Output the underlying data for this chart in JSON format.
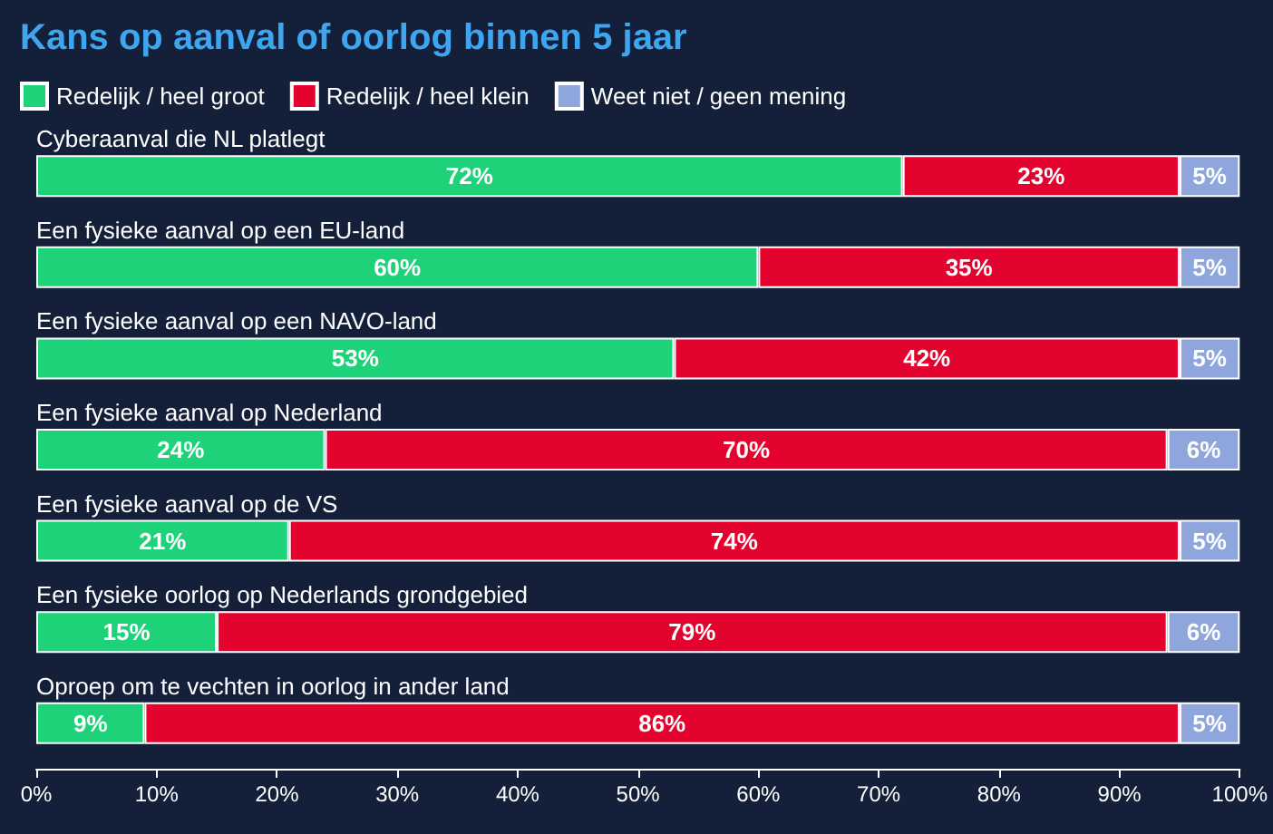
{
  "chart_data": {
    "type": "bar",
    "orientation": "horizontal",
    "stacked": true,
    "title": "Kans op aanval of oorlog binnen 5 jaar",
    "categories": [
      "Cyberaanval die NL platlegt",
      "Een fysieke aanval op een EU-land",
      "Een fysieke aanval op een NAVO-land",
      "Een fysieke aanval op Nederland",
      "Een fysieke aanval op de VS",
      "Een fysieke oorlog op Nederlands grondgebied",
      "Oproep om te vechten in oorlog in ander land"
    ],
    "series": [
      {
        "name": "Redelijk / heel groot",
        "color": "#1ed27a",
        "values": [
          72,
          60,
          53,
          24,
          21,
          15,
          9
        ],
        "value_labels": [
          "72%",
          "60%",
          "53%",
          "24%",
          "21%",
          "15%",
          "9%"
        ]
      },
      {
        "name": "Redelijk / heel klein",
        "color": "#e4032e",
        "values": [
          23,
          35,
          42,
          70,
          74,
          79,
          86
        ],
        "value_labels": [
          "23%",
          "35%",
          "42%",
          "70%",
          "74%",
          "79%",
          "86%"
        ]
      },
      {
        "name": "Weet niet / geen mening",
        "color": "#8ea6dc",
        "values": [
          5,
          5,
          5,
          6,
          5,
          6,
          5
        ],
        "value_labels": [
          "5%",
          "5%",
          "5%",
          "6%",
          "5%",
          "6%",
          "5%"
        ]
      }
    ],
    "xlim": [
      0,
      100
    ],
    "xticks": [
      {
        "value": 0,
        "label": "0%"
      },
      {
        "value": 10,
        "label": "10%"
      },
      {
        "value": 20,
        "label": "20%"
      },
      {
        "value": 30,
        "label": "30%"
      },
      {
        "value": 40,
        "label": "40%"
      },
      {
        "value": 50,
        "label": "50%"
      },
      {
        "value": 60,
        "label": "60%"
      },
      {
        "value": 70,
        "label": "70%"
      },
      {
        "value": 80,
        "label": "80%"
      },
      {
        "value": 90,
        "label": "90%"
      },
      {
        "value": 100,
        "label": "100%"
      }
    ],
    "legend": "top left",
    "grid": false
  }
}
